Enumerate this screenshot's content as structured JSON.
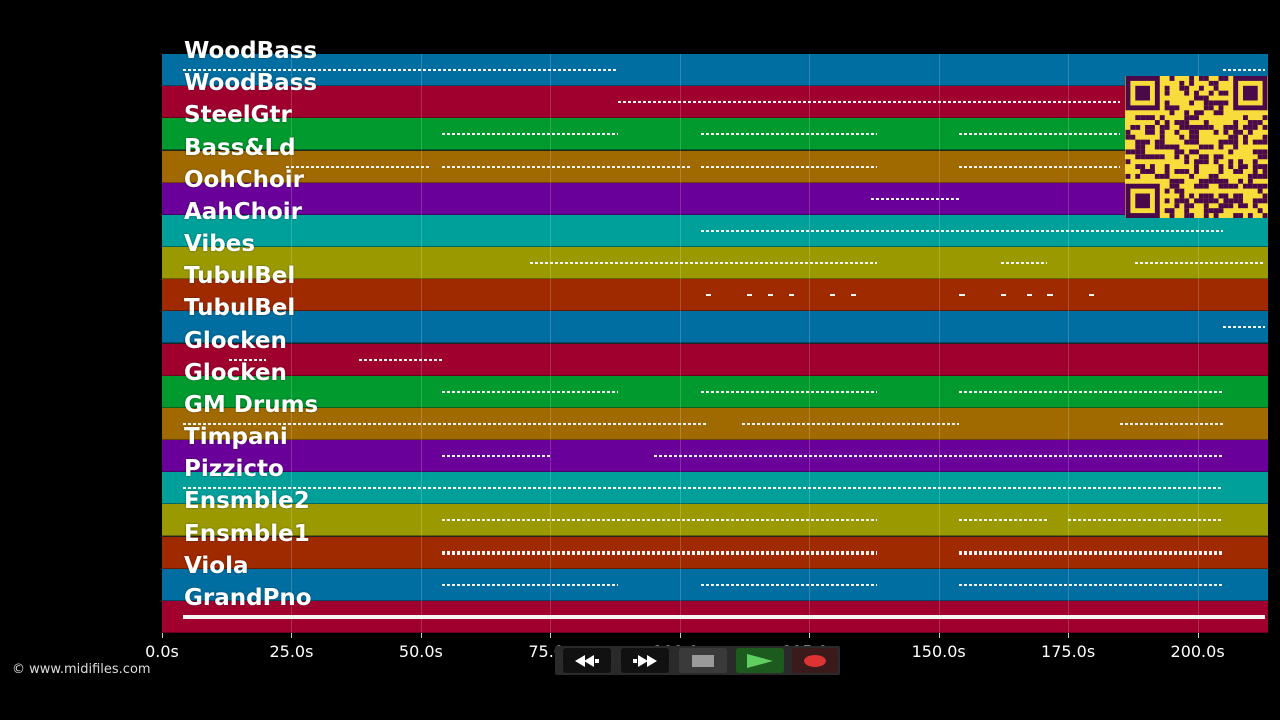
{
  "window": {
    "copyright": "© www.midifiles.com"
  },
  "timeline": {
    "max_seconds": 213.6,
    "ticks": [
      "0.0s",
      "25.0s",
      "50.0s",
      "75.0s",
      "100.0s",
      "125.0s",
      "150.0s",
      "175.0s",
      "200.0s"
    ],
    "tick_values": [
      0,
      25,
      50,
      75,
      100,
      125,
      150,
      175,
      200
    ]
  },
  "tracks": [
    {
      "name": "WoodBass",
      "color": "#006ea0",
      "segments": [
        [
          4,
          88
        ],
        [
          205,
          213
        ]
      ]
    },
    {
      "name": "WoodBass",
      "color": "#a0002e",
      "segments": [
        [
          88,
          185
        ]
      ]
    },
    {
      "name": "SteelGtr",
      "color": "#009a2e",
      "segments": [
        [
          54,
          88
        ],
        [
          104,
          138
        ],
        [
          154,
          185
        ]
      ]
    },
    {
      "name": "Bass&Ld",
      "color": "#a06a00",
      "segments": [
        [
          24,
          52
        ],
        [
          54,
          102
        ],
        [
          104,
          138
        ],
        [
          154,
          185
        ]
      ]
    },
    {
      "name": "OohChoir",
      "color": "#6a0099",
      "segments": [
        [
          137,
          154
        ]
      ]
    },
    {
      "name": "AahChoir",
      "color": "#00a09a",
      "segments": [
        [
          104,
          205
        ]
      ]
    },
    {
      "name": "Vibes",
      "color": "#9a9a00",
      "segments": [
        [
          71,
          138
        ],
        [
          162,
          171
        ],
        [
          188,
          213
        ]
      ]
    },
    {
      "name": "TubulBel",
      "color": "#a02a00",
      "segments": [
        [
          105,
          106
        ],
        [
          113,
          114
        ],
        [
          117,
          118
        ],
        [
          121,
          122
        ],
        [
          129,
          130
        ],
        [
          133,
          134
        ],
        [
          154,
          155
        ],
        [
          162,
          163
        ],
        [
          167,
          168
        ],
        [
          171,
          172
        ],
        [
          179,
          180
        ]
      ]
    },
    {
      "name": "TubulBel",
      "color": "#006ea0",
      "segments": [
        [
          205,
          213
        ]
      ]
    },
    {
      "name": "Glocken",
      "color": "#a0002e",
      "segments": [
        [
          13,
          20
        ],
        [
          38,
          54
        ]
      ]
    },
    {
      "name": "Glocken",
      "color": "#009a2e",
      "segments": [
        [
          54,
          88
        ],
        [
          104,
          138
        ],
        [
          154,
          205
        ]
      ]
    },
    {
      "name": "GM Drums",
      "color": "#a06a00",
      "segments": [
        [
          4,
          105
        ],
        [
          112,
          154
        ],
        [
          185,
          205
        ]
      ]
    },
    {
      "name": "Timpani",
      "color": "#6a0099",
      "segments": [
        [
          54,
          75
        ],
        [
          95,
          205
        ]
      ]
    },
    {
      "name": "Pizzicto",
      "color": "#00a09a",
      "segments": [
        [
          4,
          205
        ]
      ]
    },
    {
      "name": "Ensmble2",
      "color": "#9a9a00",
      "segments": [
        [
          54,
          104
        ],
        [
          104,
          138
        ],
        [
          154,
          171
        ],
        [
          175,
          205
        ]
      ]
    },
    {
      "name": "Ensmble1",
      "color": "#a02a00",
      "segments": [
        [
          54,
          104
        ],
        [
          104,
          138
        ],
        [
          154,
          205
        ]
      ]
    },
    {
      "name": "Viola",
      "color": "#006ea0",
      "segments": [
        [
          54,
          88
        ],
        [
          104,
          138
        ],
        [
          154,
          205
        ]
      ]
    },
    {
      "name": "GrandPno",
      "color": "#a0002e",
      "segments": [
        [
          4,
          213
        ]
      ]
    }
  ],
  "controls": {
    "rewind_icon": "rewind-icon",
    "forward_icon": "fast-forward-icon",
    "stop_icon": "stop-icon",
    "play_icon": "play-icon",
    "record_icon": "record-icon"
  }
}
